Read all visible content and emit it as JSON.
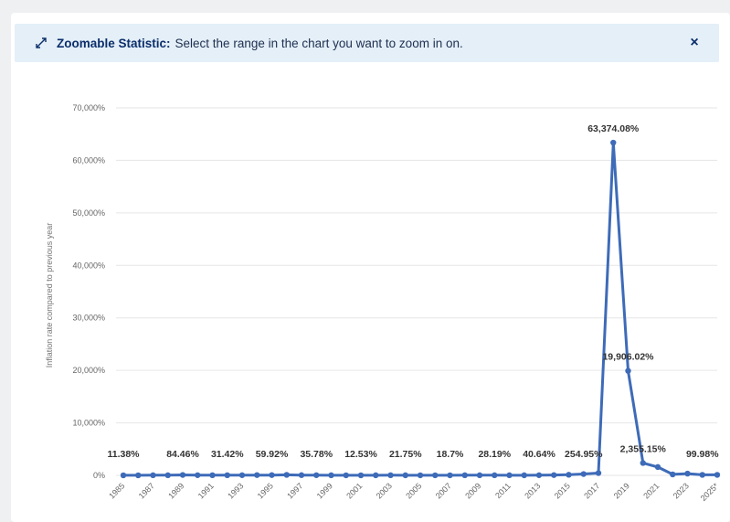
{
  "banner": {
    "icon": "zoom-arrows-icon",
    "label": "Zoomable Statistic:",
    "message": "Select the range in the chart you want to zoom in on.",
    "close": "×"
  },
  "colors": {
    "series": "#3e6bb8",
    "banner_bg": "#e4eff8",
    "banner_text": "#0c2f6b",
    "grid": "#e6e6e6"
  },
  "chart_data": {
    "type": "line",
    "title": "",
    "xlabel": "",
    "ylabel": "Inflation rate compared to previous year",
    "ylim": [
      0,
      70000
    ],
    "yticks": [
      0,
      10000,
      20000,
      30000,
      40000,
      50000,
      60000,
      70000
    ],
    "ytick_labels": [
      "0%",
      "10,000%",
      "20,000%",
      "30,000%",
      "40,000%",
      "50,000%",
      "60,000%",
      "70,000%"
    ],
    "grid": true,
    "legend": "none",
    "x": [
      "1985",
      "1986",
      "1987",
      "1988",
      "1989",
      "1990",
      "1991",
      "1992",
      "1993",
      "1994",
      "1995",
      "1996",
      "1997",
      "1998",
      "1999",
      "2000",
      "2001",
      "2002",
      "2003",
      "2004",
      "2005",
      "2006",
      "2007",
      "2008",
      "2009",
      "2010",
      "2011",
      "2012",
      "2013",
      "2014",
      "2015",
      "2016",
      "2017",
      "2018",
      "2019",
      "2020",
      "2021",
      "2022",
      "2023",
      "2024",
      "2025*"
    ],
    "xtick_labels": [
      "1985",
      "1987",
      "1989",
      "1991",
      "1993",
      "1995",
      "1997",
      "1999",
      "2001",
      "2003",
      "2005",
      "2007",
      "2009",
      "2011",
      "2013",
      "2015",
      "2017",
      "2019",
      "2021",
      "2023",
      "2025*"
    ],
    "values": [
      11.38,
      11.5,
      28.1,
      29.5,
      84.46,
      40.6,
      34.2,
      31.4,
      38.1,
      60.8,
      59.92,
      99.9,
      50.0,
      35.78,
      23.6,
      16.2,
      12.53,
      22.4,
      31.1,
      21.75,
      16.0,
      13.7,
      18.7,
      31.4,
      27.1,
      28.19,
      26.1,
      21.1,
      40.64,
      62.2,
      121.7,
      254.95,
      438.1,
      63374.08,
      19906.02,
      2355.15,
      1588.5,
      186.5,
      337.5,
      99.98,
      99.98
    ],
    "data_labels": [
      {
        "x": "1985",
        "text": "11.38%"
      },
      {
        "x": "1989",
        "text": "84.46%"
      },
      {
        "x": "1992",
        "text": "31.42%"
      },
      {
        "x": "1995",
        "text": "59.92%"
      },
      {
        "x": "1998",
        "text": "35.78%"
      },
      {
        "x": "2001",
        "text": "12.53%"
      },
      {
        "x": "2004",
        "text": "21.75%"
      },
      {
        "x": "2007",
        "text": "18.7%"
      },
      {
        "x": "2010",
        "text": "28.19%"
      },
      {
        "x": "2013",
        "text": "40.64%"
      },
      {
        "x": "2016",
        "text": "254.95%"
      },
      {
        "x": "2018",
        "text": "63,374.08%"
      },
      {
        "x": "2019",
        "text": "19,906.02%"
      },
      {
        "x": "2020",
        "text": "2,355.15%"
      },
      {
        "x": "2024",
        "text": "99.98%"
      }
    ]
  }
}
